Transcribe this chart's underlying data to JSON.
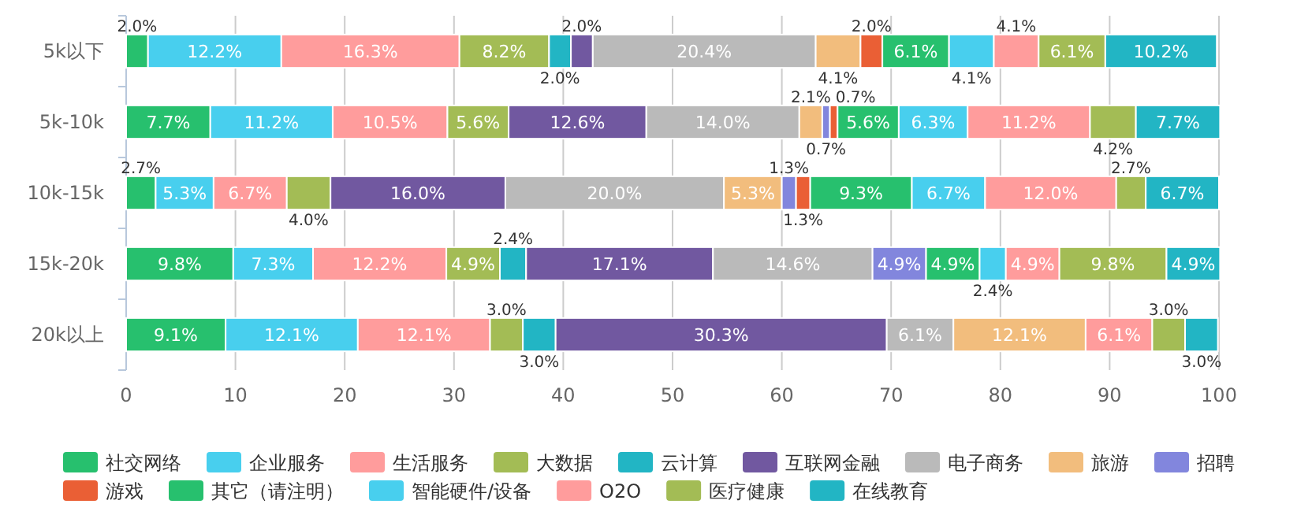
{
  "chart_data": {
    "type": "bar",
    "orientation": "horizontal",
    "stacked": true,
    "categories": [
      "5k以下",
      "5k-10k",
      "10k-15k",
      "15k-20k",
      "20k以上"
    ],
    "xlim": [
      0,
      100
    ],
    "xticks": [
      0,
      10,
      20,
      30,
      40,
      50,
      60,
      70,
      80,
      90,
      100
    ],
    "grid": "x",
    "legend": "bottom",
    "series": [
      {
        "name": "社交网络",
        "color": "#27c06e",
        "values": [
          2.0,
          7.7,
          2.7,
          9.8,
          9.1
        ],
        "value_labels": [
          "2.0%",
          "7.7%",
          "2.7%",
          "9.8%",
          "9.1%"
        ]
      },
      {
        "name": "企业服务",
        "color": "#48cfee",
        "values": [
          12.2,
          11.2,
          5.3,
          7.3,
          12.1
        ],
        "value_labels": [
          "12.2%",
          "11.2%",
          "5.3%",
          "7.3%",
          "12.1%"
        ]
      },
      {
        "name": "生活服务",
        "color": "#ff9c9c",
        "values": [
          16.3,
          10.5,
          6.7,
          12.2,
          12.1
        ],
        "value_labels": [
          "16.3%",
          "10.5%",
          "6.7%",
          "12.2%",
          "12.1%"
        ]
      },
      {
        "name": "大数据",
        "color": "#a3bc55",
        "values": [
          8.2,
          5.6,
          4.0,
          4.9,
          3.0
        ],
        "value_labels": [
          "8.2%",
          "5.6%",
          "4.0%",
          "4.9%",
          "3.0%"
        ]
      },
      {
        "name": "云计算",
        "color": "#22b5c4",
        "values": [
          2.0,
          null,
          null,
          2.4,
          3.0
        ],
        "value_labels": [
          "2.0%",
          null,
          null,
          "2.4%",
          "3.0%"
        ]
      },
      {
        "name": "互联网金融",
        "color": "#7158a0",
        "values": [
          2.0,
          12.6,
          16.0,
          17.1,
          30.3
        ],
        "value_labels": [
          "2.0%",
          "12.6%",
          "16.0%",
          "17.1%",
          "30.3%"
        ]
      },
      {
        "name": "电子商务",
        "color": "#bababa",
        "values": [
          20.4,
          14.0,
          20.0,
          14.6,
          6.1
        ],
        "value_labels": [
          "20.4%",
          "14.0%",
          "20.0%",
          "14.6%",
          "6.1%"
        ]
      },
      {
        "name": "旅游",
        "color": "#f2bd7d",
        "values": [
          4.1,
          2.1,
          5.3,
          null,
          12.1
        ],
        "value_labels": [
          "4.1%",
          "2.1%",
          "5.3%",
          null,
          "12.1%"
        ]
      },
      {
        "name": "招聘",
        "color": "#8286dd",
        "values": [
          null,
          0.7,
          1.3,
          4.9,
          null
        ],
        "value_labels": [
          null,
          "0.7%",
          "1.3%",
          "4.9%",
          null
        ]
      },
      {
        "name": "游戏",
        "color": "#ea5f35",
        "values": [
          2.0,
          0.7,
          1.3,
          null,
          null
        ],
        "value_labels": [
          "2.0%",
          "0.7%",
          "1.3%",
          null,
          null
        ]
      },
      {
        "name": "其它（请注明）",
        "color": "#27c06e",
        "values": [
          6.1,
          5.6,
          9.3,
          4.9,
          null
        ],
        "value_labels": [
          "6.1%",
          "5.6%",
          "9.3%",
          "4.9%",
          null
        ]
      },
      {
        "name": "智能硬件/设备",
        "color": "#48cfee",
        "values": [
          4.1,
          6.3,
          6.7,
          2.4,
          null
        ],
        "value_labels": [
          "4.1%",
          "6.3%",
          "6.7%",
          "2.4%",
          null
        ]
      },
      {
        "name": "O2O",
        "color": "#ff9c9c",
        "values": [
          4.1,
          11.2,
          12.0,
          4.9,
          6.1
        ],
        "value_labels": [
          "4.1%",
          "11.2%",
          "12.0%",
          "4.9%",
          "6.1%"
        ]
      },
      {
        "name": "医疗健康",
        "color": "#a3bc55",
        "values": [
          6.1,
          4.2,
          2.7,
          9.8,
          3.0
        ],
        "value_labels": [
          "6.1%",
          "4.2%",
          "2.7%",
          "9.8%",
          "3.0%"
        ]
      },
      {
        "name": "在线教育",
        "color": "#22b5c4",
        "values": [
          10.2,
          7.7,
          6.7,
          4.9,
          3.0
        ],
        "value_labels": [
          "10.2%",
          "7.7%",
          "6.7%",
          "4.9%",
          "3.0%"
        ]
      }
    ]
  }
}
